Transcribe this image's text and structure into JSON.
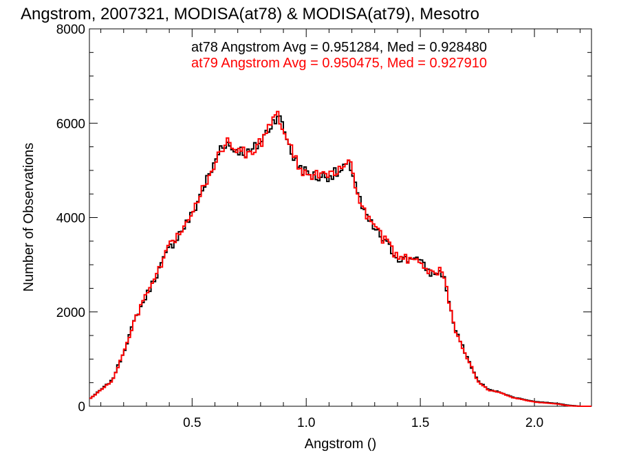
{
  "chart_data": {
    "type": "step",
    "title": "Angstrom, 2007321, MODISA(at78) & MODISA(at79), Mesotro",
    "xlabel": "Angstrom ()",
    "ylabel": "Number of Observations",
    "xlim": [
      0.05,
      2.25
    ],
    "ylim": [
      0,
      8000
    ],
    "xticks": [
      0.5,
      1.0,
      1.5,
      2.0
    ],
    "xtick_labels": [
      "0.5",
      "1.0",
      "1.5",
      "2.0"
    ],
    "yticks": [
      0,
      2000,
      4000,
      6000,
      8000
    ],
    "ytick_labels": [
      "0",
      "2000",
      "4000",
      "6000",
      "8000"
    ],
    "grid": false,
    "annotations": [
      {
        "text": "at78 Angstrom Avg = 0.951284, Med = 0.928480",
        "color": "#000000"
      },
      {
        "text": "at79 Angstrom Avg = 0.950475, Med = 0.927910",
        "color": "#ff0000"
      }
    ],
    "series": [
      {
        "color": "#000000",
        "x": [
          0.05,
          0.1,
          0.15,
          0.2,
          0.25,
          0.3,
          0.35,
          0.4,
          0.45,
          0.5,
          0.55,
          0.6,
          0.625,
          0.65,
          0.675,
          0.7,
          0.75,
          0.8,
          0.85,
          0.875,
          0.9,
          0.925,
          0.95,
          1.0,
          1.05,
          1.1,
          1.15,
          1.18,
          1.2,
          1.225,
          1.25,
          1.3,
          1.35,
          1.4,
          1.45,
          1.475,
          1.5,
          1.55,
          1.58,
          1.6,
          1.625,
          1.65,
          1.7,
          1.75,
          1.8,
          1.85,
          1.9,
          1.95,
          2.0,
          2.05,
          2.1,
          2.15,
          2.2,
          2.25
        ],
        "y": [
          150,
          350,
          550,
          1150,
          1850,
          2350,
          2850,
          3350,
          3700,
          4050,
          4650,
          5150,
          5500,
          5600,
          5450,
          5450,
          5350,
          5600,
          6000,
          6200,
          5900,
          5550,
          5200,
          4950,
          4850,
          4900,
          4950,
          5100,
          5050,
          4550,
          4100,
          3750,
          3450,
          3150,
          3100,
          3200,
          3050,
          2800,
          2850,
          2800,
          2250,
          1650,
          1100,
          550,
          350,
          300,
          200,
          150,
          100,
          80,
          60,
          20,
          0,
          0
        ]
      },
      {
        "color": "#ff0000",
        "x": [
          0.05,
          0.1,
          0.15,
          0.2,
          0.25,
          0.3,
          0.35,
          0.4,
          0.45,
          0.5,
          0.55,
          0.6,
          0.625,
          0.65,
          0.675,
          0.7,
          0.75,
          0.8,
          0.85,
          0.875,
          0.9,
          0.925,
          0.95,
          1.0,
          1.05,
          1.1,
          1.15,
          1.18,
          1.2,
          1.225,
          1.25,
          1.3,
          1.35,
          1.4,
          1.45,
          1.475,
          1.5,
          1.55,
          1.58,
          1.6,
          1.625,
          1.65,
          1.7,
          1.75,
          1.8,
          1.85,
          1.9,
          1.95,
          2.0,
          2.05,
          2.1,
          2.15,
          2.2,
          2.25
        ],
        "y": [
          150,
          340,
          540,
          1130,
          1830,
          2370,
          2830,
          3370,
          3720,
          4030,
          4630,
          5170,
          5480,
          5580,
          5470,
          5430,
          5370,
          5580,
          5980,
          6150,
          5880,
          5570,
          5220,
          4930,
          4870,
          4920,
          4970,
          5150,
          5020,
          4570,
          4120,
          3770,
          3470,
          3170,
          3120,
          3180,
          3070,
          2820,
          2870,
          2830,
          2230,
          1640,
          1090,
          540,
          340,
          290,
          190,
          140,
          90,
          70,
          50,
          10,
          0,
          0
        ]
      }
    ]
  }
}
